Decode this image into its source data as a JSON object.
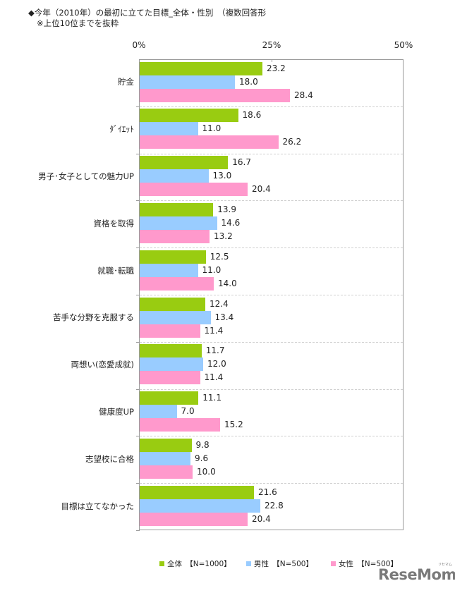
{
  "chart_data": {
    "type": "bar",
    "orientation": "horizontal",
    "title": "◆今年（2010年）の最初に立てた目標_全体・性別　（複数回答形",
    "subtitle": "※上位10位までを抜粋",
    "xlabel": "",
    "ylabel": "",
    "xlim": [
      0,
      50
    ],
    "x_ticks": [
      "0%",
      "25%",
      "50%"
    ],
    "grid": "dashed horizontal separators between categories",
    "legend_position": "bottom",
    "categories": [
      "貯金",
      "ﾀﾞｲｴｯﾄ",
      "男子･女子としての魅力UP",
      "資格を取得",
      "就職･転職",
      "苦手な分野を克服する",
      "両想い(恋愛成就)",
      "健康度UP",
      "志望校に合格",
      "目標は立てなかった"
    ],
    "series": [
      {
        "name": "全体 【N=1000】",
        "color": "#99cc11",
        "values": [
          23.2,
          18.6,
          16.7,
          13.9,
          12.5,
          12.4,
          11.7,
          11.1,
          9.8,
          21.6
        ]
      },
      {
        "name": "男性 【N=500】",
        "color": "#99ccff",
        "values": [
          18.0,
          11.0,
          13.0,
          14.6,
          11.0,
          13.4,
          12.0,
          7.0,
          9.6,
          22.8
        ]
      },
      {
        "name": "女性 【N=500】",
        "color": "#ff99cc",
        "values": [
          28.4,
          26.2,
          20.4,
          13.2,
          14.0,
          11.4,
          11.4,
          15.2,
          10.0,
          20.4
        ]
      }
    ],
    "value_labels": [
      [
        "23.2",
        "18.0",
        "28.4"
      ],
      [
        "18.6",
        "11.0",
        "26.2"
      ],
      [
        "16.7",
        "13.0",
        "20.4"
      ],
      [
        "13.9",
        "14.6",
        "13.2"
      ],
      [
        "12.5",
        "11.0",
        "14.0"
      ],
      [
        "12.4",
        "13.4",
        "11.4"
      ],
      [
        "11.7",
        "12.0",
        "11.4"
      ],
      [
        "11.1",
        "7.0",
        "15.2"
      ],
      [
        "9.8",
        "9.6",
        "10.0"
      ],
      [
        "21.6",
        "22.8",
        "20.4"
      ]
    ]
  },
  "legend": [
    {
      "label": "全体　【N=1000】",
      "color": "#99cc11"
    },
    {
      "label": "男性　【N=500】",
      "color": "#99ccff"
    },
    {
      "label": "女性　【N=500】",
      "color": "#ff99cc"
    }
  ],
  "watermark": {
    "text": "ReseMom",
    "ruby": "リセマム"
  }
}
